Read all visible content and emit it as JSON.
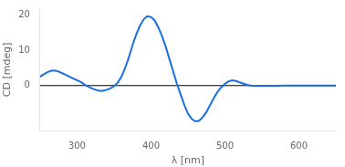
{
  "chart_data": {
    "type": "line",
    "xlabel": "λ [nm]",
    "ylabel": "CD [mdeg]",
    "x": [
      250,
      255,
      260,
      265,
      270,
      275,
      280,
      285,
      290,
      295,
      300,
      305,
      310,
      315,
      320,
      325,
      330,
      335,
      340,
      345,
      350,
      355,
      360,
      365,
      370,
      375,
      380,
      385,
      390,
      395,
      400,
      405,
      410,
      415,
      420,
      425,
      430,
      435,
      440,
      445,
      450,
      455,
      460,
      465,
      470,
      475,
      480,
      485,
      490,
      495,
      500,
      505,
      510,
      515,
      520,
      525,
      530,
      535,
      540,
      545,
      550,
      560,
      570,
      580,
      590,
      600,
      610,
      620,
      630,
      640,
      650
    ],
    "values": [
      2.5,
      3.2,
      3.8,
      4.2,
      4.3,
      4.0,
      3.5,
      3.0,
      2.5,
      2.0,
      1.5,
      1.0,
      0.3,
      -0.3,
      -0.8,
      -1.2,
      -1.5,
      -1.5,
      -1.2,
      -0.8,
      -0.2,
      0.8,
      2.5,
      5.0,
      8.0,
      11.5,
      14.5,
      17.0,
      18.8,
      19.7,
      19.5,
      18.5,
      16.5,
      14.0,
      11.0,
      7.5,
      4.0,
      0.5,
      -2.5,
      -5.5,
      -8.0,
      -9.5,
      -10.2,
      -10.0,
      -9.0,
      -7.5,
      -5.5,
      -3.5,
      -1.8,
      -0.5,
      0.5,
      1.2,
      1.5,
      1.3,
      0.9,
      0.5,
      0.2,
      0.0,
      -0.1,
      -0.1,
      -0.1,
      -0.1,
      -0.05,
      0.0,
      0.0,
      0.0,
      0.0,
      0.0,
      0.0,
      0.0,
      0.0
    ],
    "color": "#1a6fe0",
    "xlim": [
      250,
      650
    ],
    "ylim": [
      -13,
      22
    ],
    "xticks": [
      300,
      400,
      500,
      600
    ],
    "yticks": [
      0,
      10,
      20
    ],
    "grid": false
  }
}
